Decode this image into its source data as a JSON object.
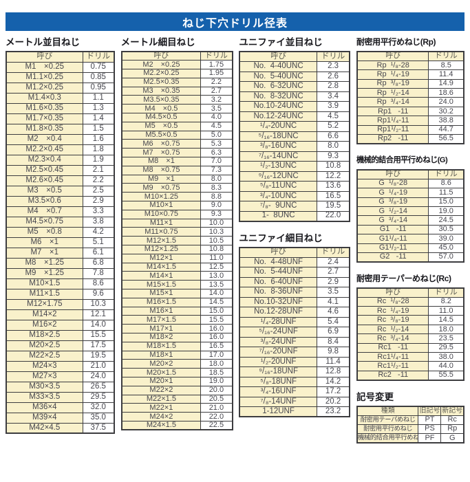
{
  "title": "ねじ下穴ドリル径表",
  "colors": {
    "banner_bg": "#1561ac",
    "banner_text": "#ffffff",
    "cell_yellow": "#f9f1cb",
    "cell_white": "#ffffff",
    "border": "#3c3c3f"
  },
  "labels": {
    "name_col": "呼び",
    "drill_col": "ドリル"
  },
  "sections": {
    "metric_coarse": {
      "heading": "メートル並目ねじ",
      "rows": [
        [
          "M1　×0.25",
          "0.75"
        ],
        [
          "M1.1×0.25",
          "0.85"
        ],
        [
          "M1.2×0.25",
          "0.95"
        ],
        [
          "M1.4×0.3",
          "1.1"
        ],
        [
          "M1.6×0.35",
          "1.3"
        ],
        [
          "M1.7×0.35",
          "1.4"
        ],
        [
          "M1.8×0.35",
          "1.5"
        ],
        [
          "M2　×0.4",
          "1.6"
        ],
        [
          "M2.2×0.45",
          "1.8"
        ],
        [
          "M2.3×0.4",
          "1.9"
        ],
        [
          "M2.5×0.45",
          "2.1"
        ],
        [
          "M2.6×0.45",
          "2.2"
        ],
        [
          "M3　×0.5",
          "2.5"
        ],
        [
          "M3.5×0.6",
          "2.9"
        ],
        [
          "M4　×0.7",
          "3.3"
        ],
        [
          "M4.5×0.75",
          "3.8"
        ],
        [
          "M5　×0.8",
          "4.2"
        ],
        [
          "M6　×1",
          "5.1"
        ],
        [
          "M7　×1",
          "6.1"
        ],
        [
          "M8　×1.25",
          "6.8"
        ],
        [
          "M9　×1.25",
          "7.8"
        ],
        [
          "M10×1.5",
          "8.6"
        ],
        [
          "M11×1.5",
          "9.6"
        ],
        [
          "M12×1.75",
          "10.3"
        ],
        [
          "M14×2",
          "12.1"
        ],
        [
          "M16×2",
          "14.0"
        ],
        [
          "M18×2.5",
          "15.5"
        ],
        [
          "M20×2.5",
          "17.5"
        ],
        [
          "M22×2.5",
          "19.5"
        ],
        [
          "M24×3",
          "21.0"
        ],
        [
          "M27×3",
          "24.0"
        ],
        [
          "M30×3.5",
          "26.5"
        ],
        [
          "M33×3.5",
          "29.5"
        ],
        [
          "M36×4",
          "32.0"
        ],
        [
          "M39×4",
          "35.0"
        ],
        [
          "M42×4.5",
          "37.5"
        ]
      ]
    },
    "metric_fine": {
      "heading": "メートル細目ねじ",
      "rows": [
        [
          "M2　×0.25",
          "1.75"
        ],
        [
          "M2.2×0.25",
          "1.95"
        ],
        [
          "M2.5×0.35",
          "2.2"
        ],
        [
          "M3　×0.35",
          "2.7"
        ],
        [
          "M3.5×0.35",
          "3.2"
        ],
        [
          "M4　×0.5",
          "3.5"
        ],
        [
          "M4.5×0.5",
          "4.0"
        ],
        [
          "M5　×0.5",
          "4.5"
        ],
        [
          "M5.5×0.5",
          "5.0"
        ],
        [
          "M6　×0.75",
          "5.3"
        ],
        [
          "M7　×0.75",
          "6.3"
        ],
        [
          "M8　×1",
          "7.0"
        ],
        [
          "M8　×0.75",
          "7.3"
        ],
        [
          "M9　×1",
          "8.0"
        ],
        [
          "M9　×0.75",
          "8.3"
        ],
        [
          "M10×1.25",
          "8.8"
        ],
        [
          "M10×1",
          "9.0"
        ],
        [
          "M10×0.75",
          "9.3"
        ],
        [
          "M11×1",
          "10.0"
        ],
        [
          "M11×0.75",
          "10.3"
        ],
        [
          "M12×1.5",
          "10.5"
        ],
        [
          "M12×1.25",
          "10.8"
        ],
        [
          "M12×1",
          "11.0"
        ],
        [
          "M14×1.5",
          "12.5"
        ],
        [
          "M14×1",
          "13.0"
        ],
        [
          "M15×1.5",
          "13.5"
        ],
        [
          "M15×1",
          "14.0"
        ],
        [
          "M16×1.5",
          "14.5"
        ],
        [
          "M16×1",
          "15.0"
        ],
        [
          "M17×1.5",
          "15.5"
        ],
        [
          "M17×1",
          "16.0"
        ],
        [
          "M18×2",
          "16.0"
        ],
        [
          "M18×1.5",
          "16.5"
        ],
        [
          "M18×1",
          "17.0"
        ],
        [
          "M20×2",
          "18.0"
        ],
        [
          "M20×1.5",
          "18.5"
        ],
        [
          "M20×1",
          "19.0"
        ],
        [
          "M22×2",
          "20.0"
        ],
        [
          "M22×1.5",
          "20.5"
        ],
        [
          "M22×1",
          "21.0"
        ],
        [
          "M24×2",
          "22.0"
        ],
        [
          "M24×1.5",
          "22.5"
        ]
      ]
    },
    "unified_coarse": {
      "heading": "ユニファイ並目ねじ",
      "rows": [
        [
          "No.  4-40UNC",
          "2.3"
        ],
        [
          "No.  5-40UNC",
          "2.6"
        ],
        [
          "No.  6-32UNC",
          "2.8"
        ],
        [
          "No.  8-32UNC",
          "3.4"
        ],
        [
          "No.10-24UNC",
          "3.9"
        ],
        [
          "No.12-24UNC",
          "4.5"
        ],
        [
          "¹/₄-20UNC",
          "5.2"
        ],
        [
          "⁵/₁₆-18UNC",
          "6.6"
        ],
        [
          "³/₈-16UNC",
          "8.0"
        ],
        [
          "⁷/₁₆-14UNC",
          "9.3"
        ],
        [
          "¹/₂-13UNC",
          "10.8"
        ],
        [
          "⁹/₁₆-12UNC",
          "12.2"
        ],
        [
          "⁵/₈-11UNC",
          "13.6"
        ],
        [
          "³/₄-10UNC",
          "16.5"
        ],
        [
          "⁷/₈-  9UNC",
          "19.5"
        ],
        [
          "1-  8UNC",
          "22.0"
        ]
      ]
    },
    "unified_fine": {
      "heading": "ユニファイ細目ねじ",
      "rows": [
        [
          "No.  4-48UNF",
          "2.4"
        ],
        [
          "No.  5-44UNF",
          "2.7"
        ],
        [
          "No.  6-40UNF",
          "2.9"
        ],
        [
          "No.  8-36UNF",
          "3.5"
        ],
        [
          "No.10-32UNF",
          "4.1"
        ],
        [
          "No.12-28UNF",
          "4.6"
        ],
        [
          "¹/₄-28UNF",
          "5.4"
        ],
        [
          "⁵/₁₆-24UNF",
          "6.9"
        ],
        [
          "³/₈-24UNF",
          "8.4"
        ],
        [
          "⁷/₁₆-20UNF",
          "9.8"
        ],
        [
          "¹/₂-20UNF",
          "11.4"
        ],
        [
          "⁹/₁₆-18UNF",
          "12.8"
        ],
        [
          "⁵/₈-18UNF",
          "14.2"
        ],
        [
          "³/₄-16UNF",
          "17.2"
        ],
        [
          "⁷/₈-14UNF",
          "20.2"
        ],
        [
          "1-12UNF",
          "23.2"
        ]
      ]
    },
    "rp": {
      "heading": "耐密用平行めねじ(Rp)",
      "rows": [
        [
          "Rp  ¹/₈-28",
          "8.5"
        ],
        [
          "Rp  ¹/₄-19",
          "11.4"
        ],
        [
          "Rp  ³/₈-19",
          "14.9"
        ],
        [
          "Rp  ¹/₂-14",
          "18.6"
        ],
        [
          "Rp  ³/₄-14",
          "24.0"
        ],
        [
          "Rp1   -11",
          "30.2"
        ],
        [
          "Rp1¹/₄-11",
          "38.8"
        ],
        [
          "Rp1¹/₂-11",
          "44.7"
        ],
        [
          "Rp2   -11",
          "56.5"
        ]
      ]
    },
    "g": {
      "heading": "機械的結合用平行めねじ(G)",
      "rows": [
        [
          "G  ¹/₈-28",
          "8.6"
        ],
        [
          "G  ¹/₄-19",
          "11.5"
        ],
        [
          "G  ³/₈-19",
          "15.0"
        ],
        [
          "G  ¹/₂-14",
          "19.0"
        ],
        [
          "G  ³/₄-14",
          "24.5"
        ],
        [
          "G1   -11",
          "30.5"
        ],
        [
          "G1¹/₄-11",
          "39.0"
        ],
        [
          "G1¹/₂-11",
          "45.0"
        ],
        [
          "G2   -11",
          "57.0"
        ]
      ]
    },
    "rc": {
      "heading": "耐密用テーパーめねじ(Rc)",
      "rows": [
        [
          "Rc  ¹/₈-28",
          "8.2"
        ],
        [
          "Rc  ¹/₄-19",
          "11.0"
        ],
        [
          "Rc  ³/₈-19",
          "14.5"
        ],
        [
          "Rc  ¹/₂-14",
          "18.0"
        ],
        [
          "Rc  ³/₄-14",
          "23.5"
        ],
        [
          "Rc1   -11",
          "29.5"
        ],
        [
          "Rc1¹/₄-11",
          "38.0"
        ],
        [
          "Rc1¹/₂-11",
          "44.0"
        ],
        [
          "Rc2   -11",
          "55.5"
        ]
      ]
    },
    "symbol_change": {
      "heading": "記号変更",
      "headers": [
        "種類",
        "旧記号",
        "新記号"
      ],
      "rows": [
        [
          "耐密用テーパめねじ",
          "PT",
          "Rc"
        ],
        [
          "耐密用平行めねじ",
          "PS",
          "Rp"
        ],
        [
          "機械的結合用平行めねじ",
          "PF",
          "G"
        ]
      ]
    }
  }
}
